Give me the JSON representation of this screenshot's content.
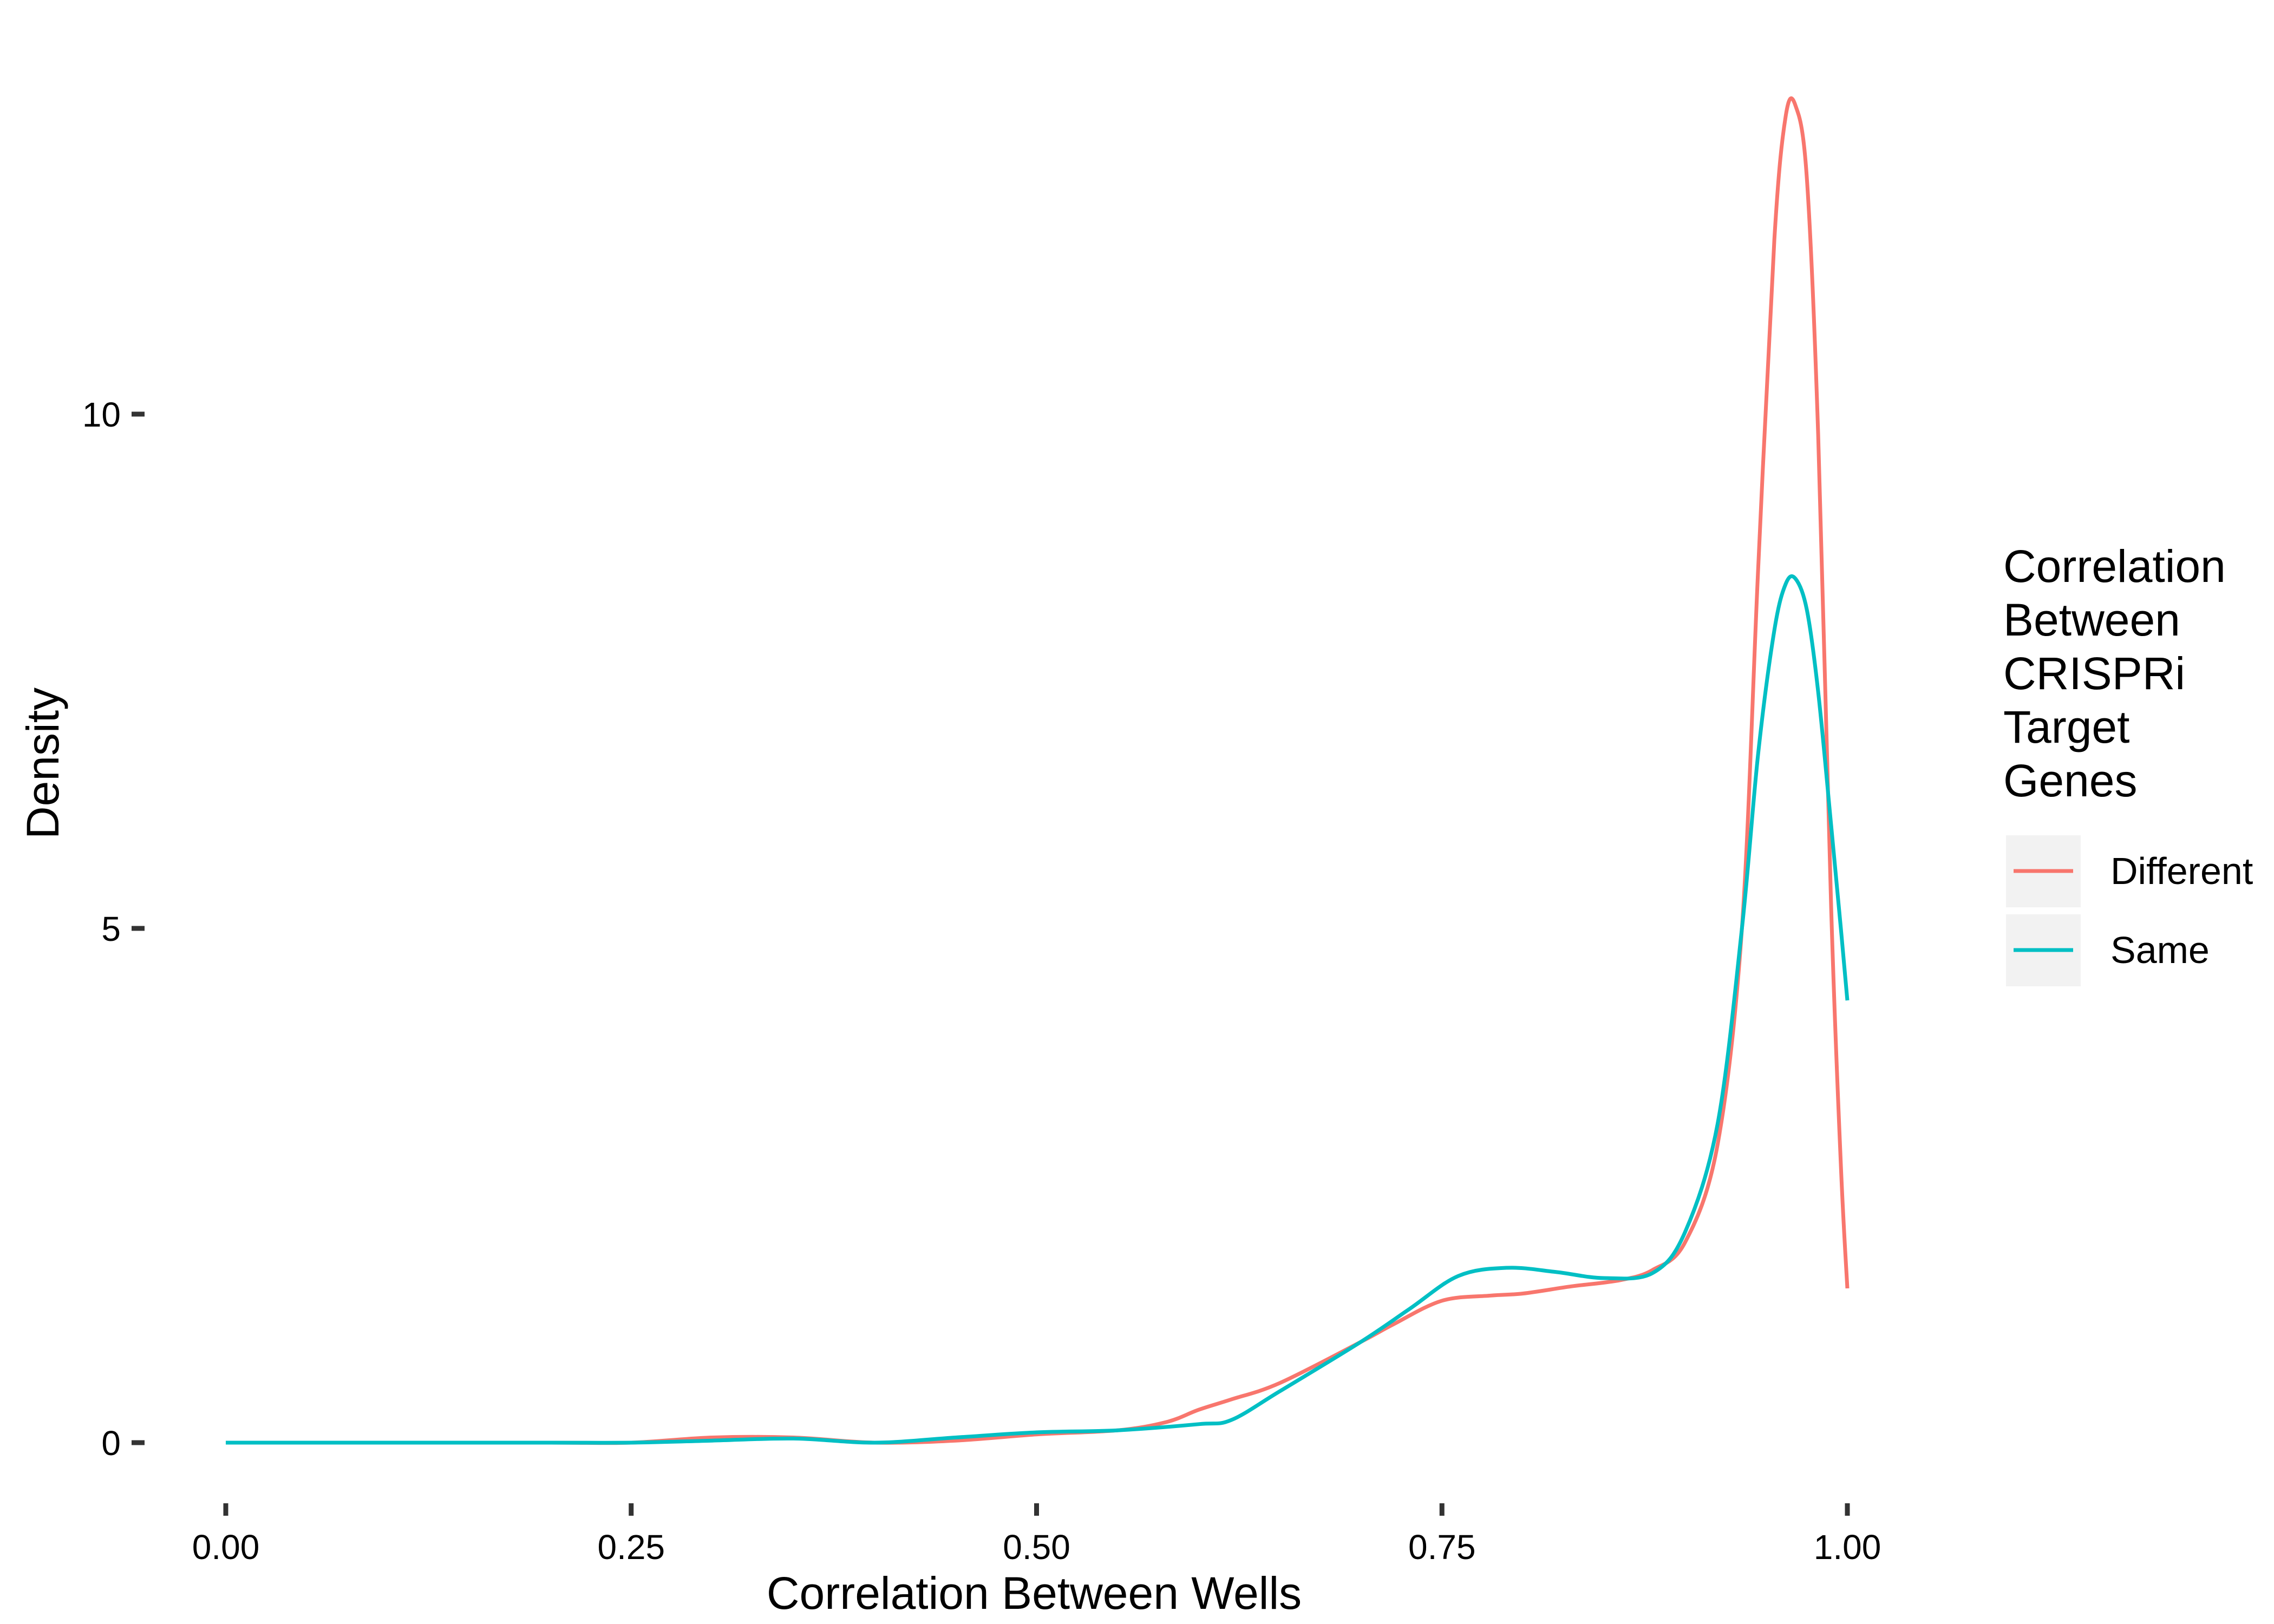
{
  "chart_data": {
    "type": "line",
    "xlabel": "Correlation Between Wells",
    "ylabel": "Density",
    "xlim": [
      0,
      1
    ],
    "ylim": [
      0,
      13
    ],
    "x_ticks": [
      "0.00",
      "0.25",
      "0.50",
      "0.75",
      "1.00"
    ],
    "y_ticks": [
      "0",
      "5",
      "10"
    ],
    "grid": false,
    "legend": {
      "title_lines": [
        "Correlation",
        "Between",
        "CRISPRi",
        "Target",
        "Genes"
      ],
      "position": "right"
    },
    "series": [
      {
        "name": "Different",
        "color": "#F8766D",
        "points": [
          [
            0.0,
            0.0
          ],
          [
            0.1,
            0.0
          ],
          [
            0.2,
            0.0
          ],
          [
            0.25,
            0.0
          ],
          [
            0.3,
            0.05
          ],
          [
            0.35,
            0.05
          ],
          [
            0.4,
            0.0
          ],
          [
            0.45,
            0.02
          ],
          [
            0.5,
            0.08
          ],
          [
            0.55,
            0.12
          ],
          [
            0.58,
            0.2
          ],
          [
            0.6,
            0.32
          ],
          [
            0.62,
            0.42
          ],
          [
            0.65,
            0.58
          ],
          [
            0.7,
            0.98
          ],
          [
            0.72,
            1.15
          ],
          [
            0.75,
            1.38
          ],
          [
            0.78,
            1.43
          ],
          [
            0.8,
            1.45
          ],
          [
            0.83,
            1.52
          ],
          [
            0.86,
            1.58
          ],
          [
            0.88,
            1.68
          ],
          [
            0.9,
            1.95
          ],
          [
            0.92,
            2.9
          ],
          [
            0.935,
            5.0
          ],
          [
            0.945,
            8.5
          ],
          [
            0.955,
            11.7
          ],
          [
            0.962,
            12.9
          ],
          [
            0.968,
            13.0
          ],
          [
            0.975,
            12.3
          ],
          [
            0.982,
            9.8
          ],
          [
            0.99,
            5.2
          ],
          [
            0.996,
            2.7
          ],
          [
            1.0,
            1.5
          ]
        ]
      },
      {
        "name": "Same",
        "color": "#00BFC4",
        "points": [
          [
            0.0,
            0.0
          ],
          [
            0.1,
            0.0
          ],
          [
            0.2,
            0.0
          ],
          [
            0.25,
            0.0
          ],
          [
            0.3,
            0.02
          ],
          [
            0.35,
            0.04
          ],
          [
            0.4,
            0.0
          ],
          [
            0.45,
            0.05
          ],
          [
            0.5,
            0.1
          ],
          [
            0.55,
            0.12
          ],
          [
            0.6,
            0.18
          ],
          [
            0.62,
            0.22
          ],
          [
            0.65,
            0.5
          ],
          [
            0.7,
            0.98
          ],
          [
            0.73,
            1.3
          ],
          [
            0.76,
            1.62
          ],
          [
            0.79,
            1.7
          ],
          [
            0.82,
            1.66
          ],
          [
            0.85,
            1.6
          ],
          [
            0.88,
            1.65
          ],
          [
            0.9,
            2.05
          ],
          [
            0.92,
            3.1
          ],
          [
            0.935,
            5.0
          ],
          [
            0.945,
            6.7
          ],
          [
            0.955,
            7.9
          ],
          [
            0.962,
            8.35
          ],
          [
            0.968,
            8.4
          ],
          [
            0.975,
            8.1
          ],
          [
            0.982,
            7.3
          ],
          [
            0.99,
            6.0
          ],
          [
            0.996,
            5.0
          ],
          [
            1.0,
            4.3
          ]
        ]
      }
    ]
  }
}
